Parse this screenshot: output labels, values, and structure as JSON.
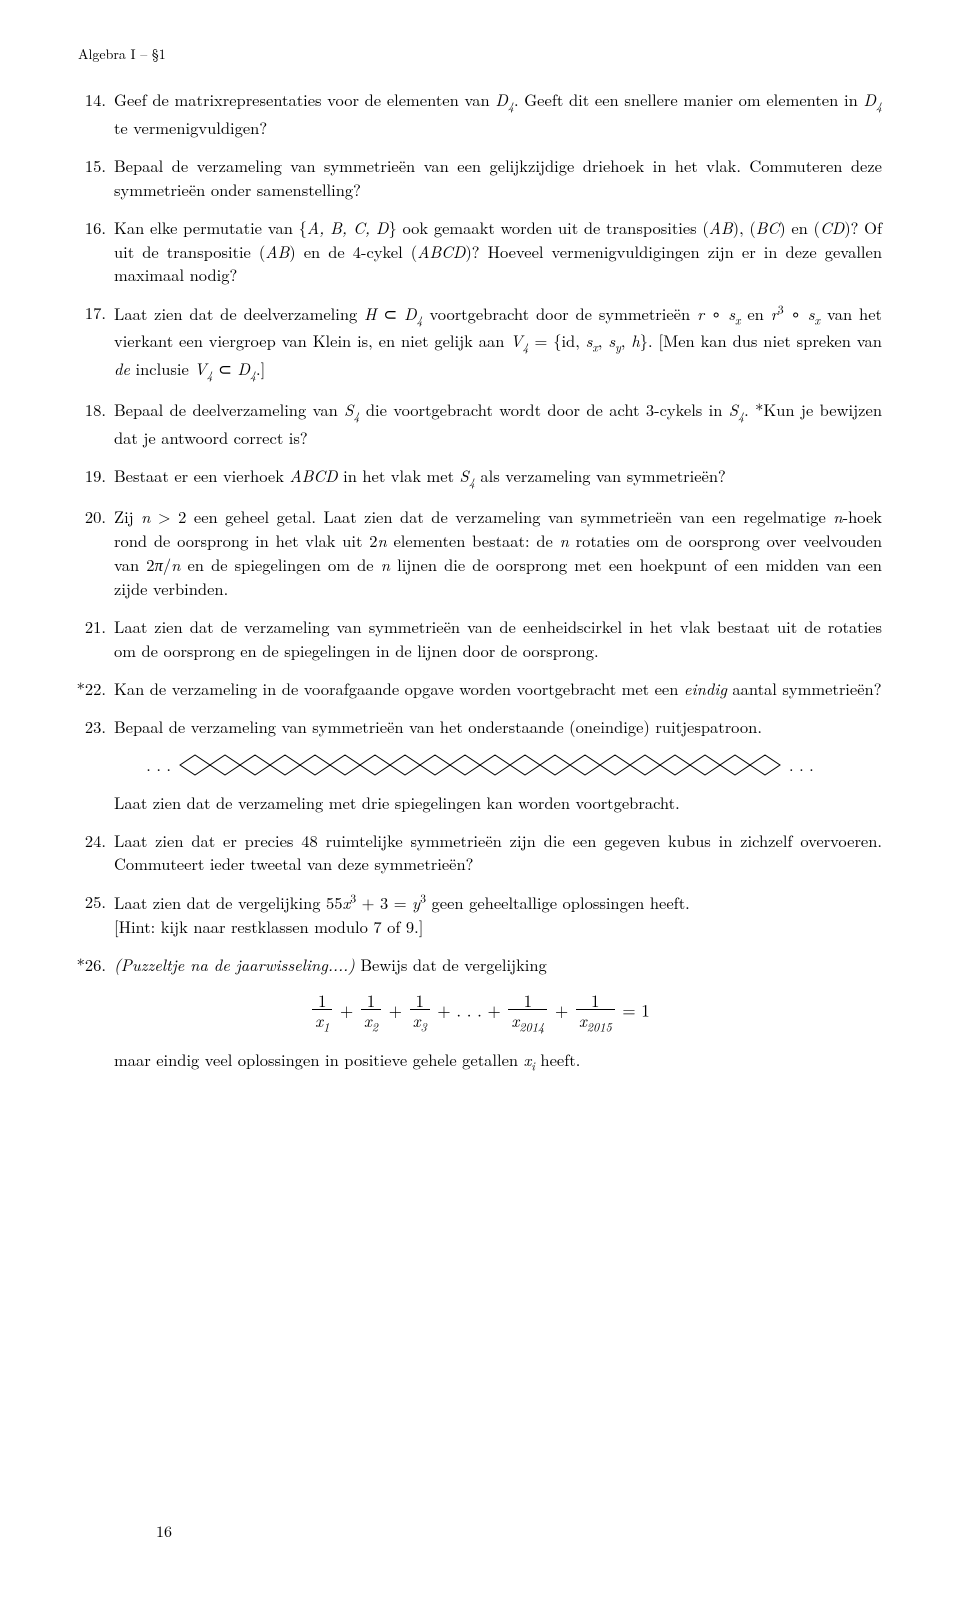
{
  "header": "Algebra I – §1",
  "pageNumber": "16",
  "diamonds": {
    "count": 20,
    "unitW": 30,
    "unitH": 20,
    "stroke": "#000000",
    "strokeWidth": 1,
    "dots": ". . ."
  },
  "equation": {
    "terms": [
      {
        "n": "1",
        "d": "x",
        "dsub": "1"
      },
      {
        "n": "1",
        "d": "x",
        "dsub": "2"
      },
      {
        "n": "1",
        "d": "x",
        "dsub": "3"
      }
    ],
    "dots": ". . .",
    "tail": [
      {
        "n": "1",
        "d": "x",
        "dsub": "2014"
      },
      {
        "n": "1",
        "d": "x",
        "dsub": "2015"
      }
    ],
    "rhs": "= 1"
  },
  "items": [
    {
      "num": "14.",
      "html": "Geef de matrixrepresentaties voor de elementen van <span class='math'>D</span><sub>4</sub>. Geeft dit een snellere manier om elementen in <span class='math'>D</span><sub>4</sub> te vermenigvuldigen?"
    },
    {
      "num": "15.",
      "html": "Bepaal de verzameling van symmetrieën van een gelijkzijdige driehoek in het vlak. Commuteren deze symmetrieën onder samenstelling?"
    },
    {
      "num": "16.",
      "html": "Kan elke permutatie van {<span class='math'>A, B, C, D</span>} ook gemaakt worden uit de transposities (<span class='math'>AB</span>), (<span class='math'>BC</span>) en (<span class='math'>CD</span>)? Of uit de transpositie (<span class='math'>AB</span>) en de 4-cykel (<span class='math'>ABCD</span>)? Hoeveel vermenigvuldigingen zijn er in deze gevallen maximaal nodig?"
    },
    {
      "num": "17.",
      "html": "Laat zien dat de deelverzameling <span class='math'>H</span> ⊂ <span class='math'>D</span><sub>4</sub> voortgebracht door de symmetrieën <span class='math'>r</span> ∘ <span class='math'>s<sub>x</sub></span> en <span class='math'>r</span><sup>3</sup> ∘ <span class='math'>s<sub>x</sub></span> van het vierkant een viergroep van Klein is, en niet gelijk aan <span class='math'>V</span><sub>4</sub> = {id, <span class='math'>s<sub>x</sub></span>, <span class='math'>s<sub>y</sub></span>, <span class='math'>h</span>}. [Men kan dus niet spreken van <em class='ital'>de</em> inclusie <span class='math'>V</span><sub>4</sub> ⊂ <span class='math'>D</span><sub>4</sub>.]"
    },
    {
      "num": "18.",
      "html": "Bepaal de deelverzameling van <span class='math'>S</span><sub>4</sub> die voortgebracht wordt door de acht 3-cykels in <span class='math'>S</span><sub>4</sub>. *Kun je bewijzen dat je antwoord correct is?"
    },
    {
      "num": "19.",
      "html": "Bestaat er een vierhoek <span class='math'>ABCD</span> in het vlak met <span class='math'>S</span><sub>4</sub> als verzameling van symmetrieën?"
    },
    {
      "num": "20.",
      "html": "Zij <span class='math'>n</span> &gt; 2 een geheel getal. Laat zien dat de verzameling van symmetrieën van een regelmatige <span class='math'>n</span>-hoek rond de oorsprong in het vlak uit 2<span class='math'>n</span> elementen bestaat: de <span class='math'>n</span> rotaties om de oorsprong over veelvouden van 2<span class='math'>π</span>/<span class='math'>n</span> en de spiegelingen om de <span class='math'>n</span> lijnen die de oorsprong met een hoekpunt of een midden van een zijde verbinden."
    },
    {
      "num": "21.",
      "html": "Laat zien dat de verzameling van symmetrieën van de eenheidscirkel in het vlak bestaat uit de rotaties om de oorsprong en de spiegelingen in de lijnen door de oorsprong."
    },
    {
      "num": "*22.",
      "star": true,
      "html": "Kan de verzameling in de voorafgaande opgave worden voortgebracht met een <em class='ital'>eindig</em> aantal symmetrieën?"
    },
    {
      "num": "23.",
      "html": "Bepaal de verzameling van symmetrieën van het onderstaande (oneindige) ruitjespatroon.",
      "afterDiag": "Laat zien dat de verzameling met drie spiegelingen kan worden voortgebracht."
    },
    {
      "num": "24.",
      "html": "Laat zien dat er precies 48 ruimtelijke symmetrieën zijn die een gegeven kubus in zichzelf overvoeren. Commuteert ieder tweetal van deze symmetrieën?"
    },
    {
      "num": "25.",
      "html": "Laat zien dat de vergelijking 55<span class='math'>x</span><sup>3</sup> + 3 = <span class='math'>y</span><sup>3</sup> geen geheeltallige oplossingen heeft.<br>[Hint: kijk naar restklassen modulo 7 of 9.]"
    },
    {
      "num": "*26.",
      "star": true,
      "html": "<em class='ital'>(Puzzeltje na de jaarwisseling....)</em> Bewijs dat de vergelijking",
      "equation": true,
      "afterEq": "maar eindig veel oplossingen in positieve gehele getallen <span class='math'>x<sub>i</sub></span> heeft."
    }
  ]
}
